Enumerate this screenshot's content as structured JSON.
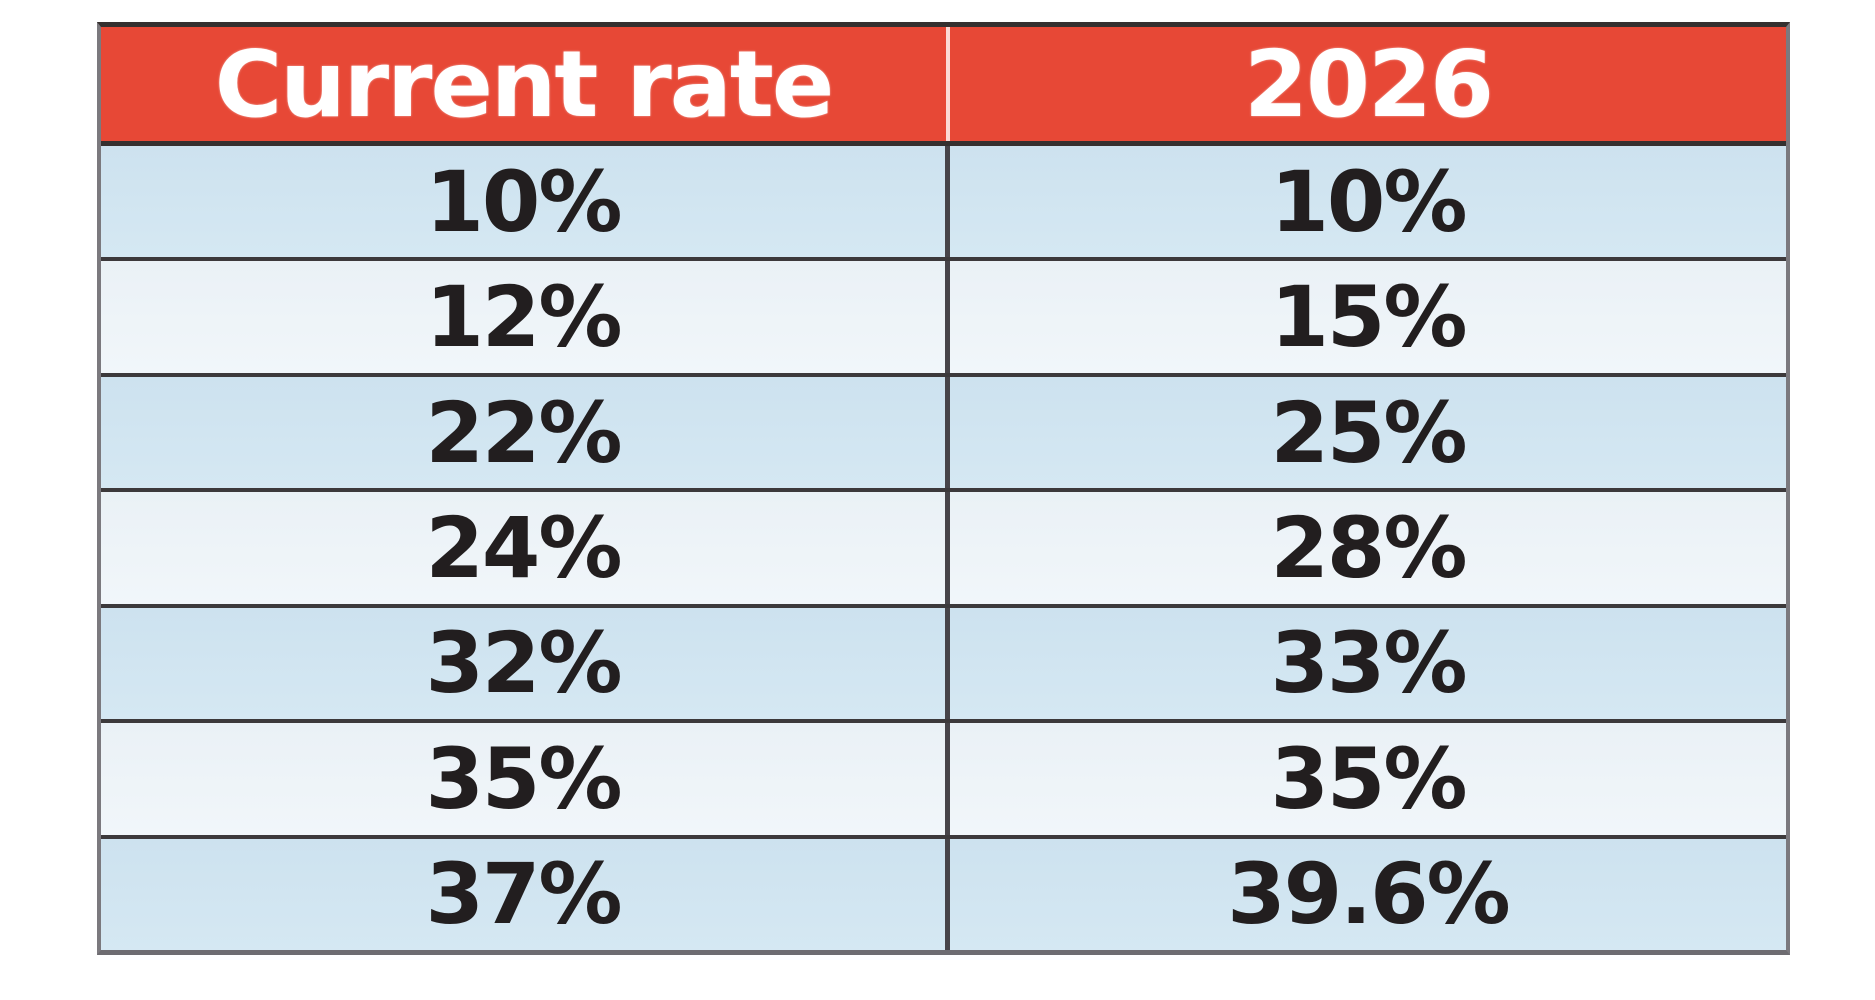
{
  "page": {
    "background": "#ffffff"
  },
  "colors": {
    "header_bg": "#e74836",
    "header_text": "#ffffff",
    "row_blue": "#cfe4f0",
    "row_light": "#ecf2f7",
    "separator_dark": "#3c393b",
    "outer_border_gray": "#7b797e",
    "cell_text": "#221e1f"
  },
  "table": {
    "columns": [
      "Current rate",
      "2026"
    ],
    "rows": [
      [
        "10%",
        "10%"
      ],
      [
        "12%",
        "15%"
      ],
      [
        "22%",
        "25%"
      ],
      [
        "24%",
        "28%"
      ],
      [
        "32%",
        "33%"
      ],
      [
        "35%",
        "35%"
      ],
      [
        "37%",
        "39.6%"
      ]
    ]
  },
  "chart_data": {
    "type": "table",
    "columns": [
      "Current rate",
      "2026"
    ],
    "rows": [
      [
        "10%",
        "10%"
      ],
      [
        "12%",
        "15%"
      ],
      [
        "22%",
        "25%"
      ],
      [
        "24%",
        "28%"
      ],
      [
        "32%",
        "33%"
      ],
      [
        "35%",
        "35%"
      ],
      [
        "37%",
        "39.6%"
      ]
    ],
    "notes_visible_in_image": "Two-column comparison table of percentage rates: current rate vs 2026. Red header row, alternating light-blue and off-white body rows, dark gridlines."
  }
}
